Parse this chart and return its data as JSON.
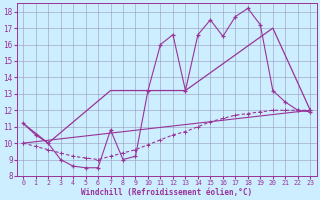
{
  "xlabel": "Windchill (Refroidissement éolien,°C)",
  "bg_color": "#cceeff",
  "line_color": "#993399",
  "grid_color": "#9999bb",
  "xlim": [
    -0.5,
    23.5
  ],
  "ylim": [
    8,
    18.5
  ],
  "xticks": [
    0,
    1,
    2,
    3,
    4,
    5,
    6,
    7,
    8,
    9,
    10,
    11,
    12,
    13,
    14,
    15,
    16,
    17,
    18,
    19,
    20,
    21,
    22,
    23
  ],
  "yticks": [
    8,
    9,
    10,
    11,
    12,
    13,
    14,
    15,
    16,
    17,
    18
  ],
  "line1_x": [
    0,
    1,
    2,
    3,
    4,
    5,
    6,
    7,
    8,
    9,
    10,
    11,
    12,
    13,
    14,
    15,
    16,
    17,
    18,
    19,
    20,
    21,
    22,
    23
  ],
  "line1_y": [
    11.2,
    10.5,
    10.0,
    9.0,
    8.6,
    8.5,
    8.5,
    10.8,
    9.0,
    9.2,
    13.2,
    16.0,
    16.6,
    13.2,
    16.6,
    17.5,
    16.5,
    17.7,
    18.2,
    17.2,
    13.2,
    12.5,
    12.0,
    11.9
  ],
  "line2_x": [
    0,
    2,
    7,
    13,
    20,
    23
  ],
  "line2_y": [
    11.2,
    10.0,
    13.2,
    13.2,
    17.0,
    12.0
  ],
  "line3_x": [
    0,
    23
  ],
  "line3_y": [
    10.0,
    12.0
  ],
  "line4_x": [
    0,
    1,
    2,
    3,
    4,
    5,
    6,
    7,
    8,
    9,
    10,
    11,
    12,
    13,
    14,
    15,
    16,
    17,
    18,
    19,
    20,
    21,
    22,
    23
  ],
  "line4_y": [
    10.0,
    9.8,
    9.6,
    9.4,
    9.2,
    9.1,
    9.0,
    9.2,
    9.4,
    9.6,
    9.9,
    10.2,
    10.5,
    10.7,
    11.0,
    11.3,
    11.5,
    11.7,
    11.8,
    11.9,
    12.0,
    12.0,
    12.0,
    12.0
  ]
}
